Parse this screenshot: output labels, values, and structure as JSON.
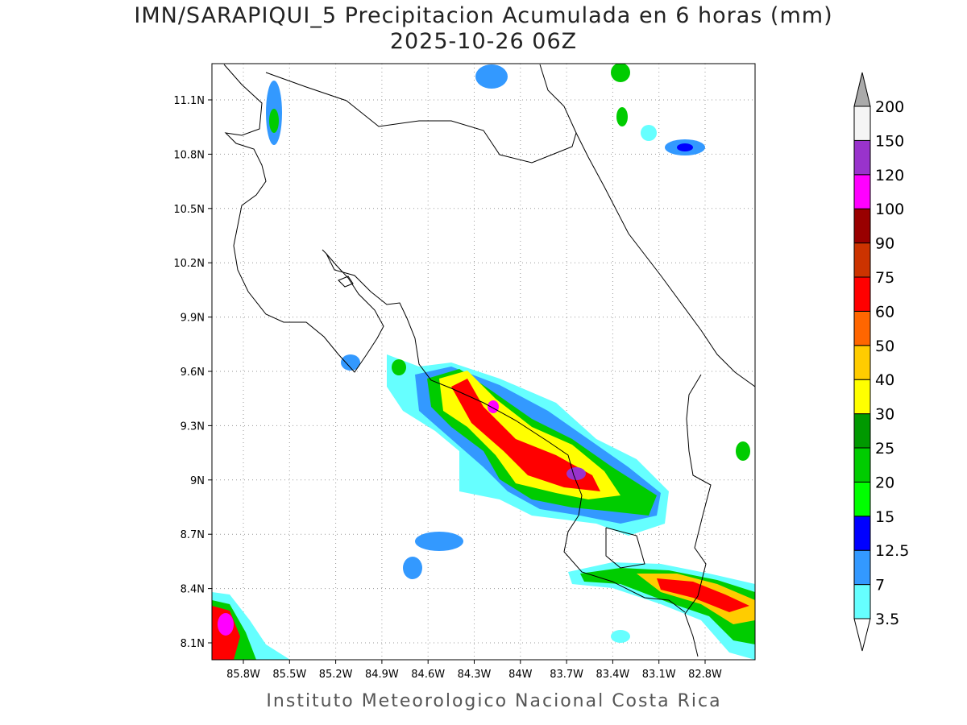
{
  "header": {
    "title": "IMN/SARAPIQUI_5 Precipitacion Acumulada en 6 horas (mm)",
    "subtitle": "2025-10-26 06Z"
  },
  "map": {
    "lat_labels": [
      "11.1N",
      "10.8N",
      "10.5N",
      "10.2N",
      "9.9N",
      "9.6N",
      "9.3N",
      "9N",
      "8.7N",
      "8.4N",
      "8.1N"
    ],
    "lon_labels": [
      "85.8W",
      "85.5W",
      "85.2W",
      "84.9W",
      "84.6W",
      "84.3W",
      "84W",
      "83.7W",
      "83.4W",
      "83.1W",
      "82.8W"
    ]
  },
  "colorbar": {
    "labels": [
      "3.5",
      "7",
      "12.5",
      "15",
      "20",
      "25",
      "30",
      "40",
      "50",
      "60",
      "75",
      "90",
      "100",
      "120",
      "150",
      "200"
    ],
    "colors": [
      "#66ffff",
      "#3399ff",
      "#0000ff",
      "#00ff00",
      "#00cc00",
      "#009900",
      "#ffff00",
      "#ffcc00",
      "#ff6600",
      "#ff0000",
      "#cc3300",
      "#990000",
      "#ff00ff",
      "#9933cc",
      "#f5f5f5"
    ],
    "under_color": "#ffffff",
    "over_color": "#aaaaaa"
  },
  "footer": "Instituto Meteorologico Nacional Costa Rica"
}
